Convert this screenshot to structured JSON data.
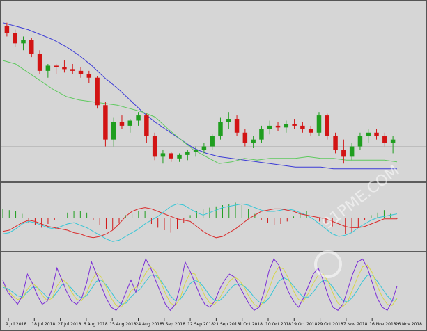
{
  "chart_data": {
    "type": "line",
    "title": "",
    "colors": {
      "background": "#d6d6d6",
      "bull": "#1f9e1f",
      "bear": "#d21414",
      "ma_slow": "#3b3bd6",
      "ma_fast": "#5ec95e",
      "ma_yellow": "#e6e07a",
      "macd_signal": "#d92b2b",
      "macd_line": "#36c6d6",
      "stoch_k": "#7a2bd6",
      "stoch_d": "#d6d64a",
      "stoch_3": "#36c6d6",
      "divider": "#333333",
      "hline": "#bdbdbd"
    },
    "x_labels": [
      "9 Jul 2018",
      "18 Jul 2018",
      "27 Jul 2018",
      "6 Aug 2018",
      "15 Aug 2018",
      "24 Aug 2018",
      "3 Sep 2018",
      "12 Sep 2018",
      "21 Sep 2018",
      "1 Oct 2018",
      "10 Oct 2018",
      "19 Oct 2018",
      "29 Oct 2018",
      "7 Nov 2018",
      "16 Nov 2018",
      "26 Nov 2018"
    ],
    "price_panel": {
      "ylim": [
        0,
        100
      ],
      "reference_level": 18,
      "ma_slow": [
        90,
        88,
        86,
        83,
        80,
        76,
        71,
        65,
        58,
        52,
        45,
        38,
        32,
        27,
        22,
        17,
        14,
        12,
        11,
        10,
        9,
        8,
        7,
        6,
        6,
        6,
        5,
        5,
        5,
        5,
        5,
        5
      ],
      "ma_fast": [
        68,
        66,
        61,
        56,
        51,
        47,
        45,
        44,
        43,
        42,
        40,
        38,
        35,
        28,
        22,
        16,
        12,
        8,
        9,
        11,
        10,
        11,
        11,
        11,
        12,
        11,
        11,
        10,
        10,
        10,
        10,
        9
      ],
      "ma_yellow": [
        null,
        null,
        null,
        null,
        null,
        null,
        null,
        null,
        null,
        null,
        null,
        null,
        null,
        null,
        null,
        null,
        null,
        null,
        null,
        null,
        null,
        null,
        null,
        null,
        null,
        null,
        null,
        null,
        null,
        null,
        null,
        null
      ],
      "candles": [
        [
          88,
          90,
          82,
          84
        ],
        [
          84,
          86,
          76,
          78
        ],
        [
          78,
          82,
          74,
          80
        ],
        [
          80,
          81,
          70,
          72
        ],
        [
          72,
          74,
          60,
          62
        ],
        [
          62,
          66,
          58,
          65
        ],
        [
          65,
          66,
          60,
          64
        ],
        [
          64,
          68,
          61,
          63
        ],
        [
          63,
          66,
          60,
          62
        ],
        [
          62,
          64,
          58,
          60
        ],
        [
          60,
          62,
          55,
          58
        ],
        [
          58,
          59,
          40,
          42
        ],
        [
          42,
          44,
          18,
          22
        ],
        [
          22,
          35,
          18,
          32
        ],
        [
          32,
          36,
          28,
          30
        ],
        [
          30,
          34,
          26,
          33
        ],
        [
          33,
          38,
          30,
          36
        ],
        [
          36,
          37,
          20,
          24
        ],
        [
          24,
          26,
          10,
          12
        ],
        [
          12,
          16,
          8,
          14
        ],
        [
          14,
          15,
          9,
          11
        ],
        [
          11,
          14,
          9,
          13
        ],
        [
          13,
          16,
          10,
          15
        ],
        [
          15,
          18,
          12,
          16
        ],
        [
          16,
          20,
          14,
          18
        ],
        [
          18,
          25,
          16,
          24
        ],
        [
          24,
          35,
          22,
          32
        ],
        [
          32,
          38,
          28,
          34
        ],
        [
          34,
          36,
          24,
          26
        ],
        [
          26,
          28,
          18,
          20
        ],
        [
          20,
          24,
          17,
          22
        ],
        [
          22,
          30,
          20,
          28
        ],
        [
          28,
          33,
          25,
          30
        ],
        [
          30,
          32,
          27,
          29
        ],
        [
          29,
          33,
          26,
          31
        ],
        [
          31,
          34,
          28,
          30
        ],
        [
          30,
          32,
          26,
          28
        ],
        [
          28,
          30,
          24,
          26
        ],
        [
          26,
          38,
          24,
          36
        ],
        [
          36,
          37,
          22,
          24
        ],
        [
          24,
          26,
          14,
          16
        ],
        [
          16,
          22,
          8,
          12
        ],
        [
          12,
          20,
          10,
          18
        ],
        [
          18,
          26,
          16,
          24
        ],
        [
          24,
          28,
          20,
          26
        ],
        [
          26,
          28,
          22,
          24
        ],
        [
          24,
          26,
          18,
          20
        ],
        [
          20,
          24,
          14,
          22
        ]
      ]
    },
    "macd_panel": {
      "ylim": [
        -50,
        50
      ],
      "histogram": [
        14,
        12,
        10,
        6,
        -8,
        -12,
        -16,
        -10,
        -4,
        6,
        8,
        10,
        10,
        8,
        -4,
        -12,
        -18,
        -20,
        -8,
        4,
        6,
        10,
        10,
        -10,
        -16,
        -20,
        -24,
        -18,
        -8,
        4,
        10,
        14,
        16,
        18,
        20,
        22,
        24,
        20,
        14,
        6,
        -4,
        -8,
        -12,
        -10,
        -6,
        2,
        8,
        10,
        -2,
        -6,
        -10,
        -14,
        -22,
        -26,
        -24,
        -16,
        -4,
        4,
        8,
        12,
        6,
        -2
      ],
      "signal_line": [
        -22,
        -20,
        -14,
        -8,
        -4,
        -6,
        -10,
        -14,
        -16,
        -18,
        -20,
        -24,
        -26,
        -30,
        -32,
        -30,
        -26,
        -20,
        -10,
        2,
        10,
        14,
        16,
        14,
        10,
        6,
        2,
        -2,
        -4,
        -6,
        -14,
        -22,
        -28,
        -32,
        -30,
        -24,
        -18,
        -10,
        -2,
        4,
        10,
        12,
        14,
        14,
        12,
        10,
        6,
        4,
        2,
        0,
        -2,
        -6,
        -10,
        -14,
        -16,
        -16,
        -14,
        -10,
        -6,
        -2,
        -2,
        -2
      ],
      "macd_line": [
        -26,
        -24,
        -18,
        -10,
        -6,
        -8,
        -12,
        -16,
        -18,
        -14,
        -10,
        -8,
        -12,
        -16,
        -22,
        -28,
        -34,
        -38,
        -36,
        -30,
        -24,
        -18,
        -10,
        -4,
        2,
        10,
        18,
        22,
        20,
        14,
        8,
        4,
        8,
        12,
        16,
        18,
        20,
        22,
        20,
        16,
        12,
        10,
        10,
        12,
        14,
        12,
        8,
        4,
        -2,
        -10,
        -18,
        -26,
        -30,
        -28,
        -24,
        -16,
        -10,
        -4,
        0,
        2,
        4,
        6
      ]
    },
    "stoch_panel": {
      "ylim": [
        0,
        100
      ],
      "k": [
        60,
        40,
        30,
        20,
        35,
        70,
        55,
        35,
        20,
        25,
        45,
        80,
        60,
        40,
        25,
        20,
        30,
        55,
        90,
        70,
        50,
        30,
        15,
        10,
        20,
        40,
        60,
        40,
        70,
        95,
        80,
        60,
        40,
        20,
        10,
        20,
        50,
        90,
        75,
        55,
        35,
        20,
        15,
        25,
        45,
        60,
        70,
        65,
        50,
        35,
        20,
        10,
        15,
        40,
        75,
        95,
        85,
        60,
        40,
        25,
        15,
        30,
        50,
        70,
        80,
        60,
        35,
        15,
        10,
        20,
        45,
        70,
        90,
        95,
        80,
        55,
        30,
        15,
        10,
        25,
        50
      ],
      "d": [
        52,
        44,
        34,
        28,
        30,
        45,
        55,
        48,
        35,
        26,
        30,
        50,
        62,
        55,
        40,
        28,
        26,
        38,
        58,
        72,
        65,
        48,
        30,
        18,
        15,
        25,
        42,
        48,
        55,
        72,
        82,
        75,
        58,
        38,
        22,
        18,
        30,
        55,
        72,
        70,
        52,
        34,
        22,
        20,
        30,
        45,
        58,
        65,
        60,
        48,
        32,
        20,
        15,
        25,
        45,
        68,
        82,
        78,
        62,
        42,
        28,
        25,
        38,
        55,
        68,
        70,
        58,
        38,
        22,
        16,
        25,
        45,
        65,
        82,
        85,
        72,
        50,
        32,
        20,
        18,
        30
      ],
      "line3": [
        48,
        46,
        40,
        34,
        32,
        40,
        48,
        48,
        40,
        32,
        30,
        40,
        52,
        54,
        46,
        36,
        30,
        34,
        46,
        58,
        60,
        52,
        40,
        28,
        20,
        22,
        32,
        40,
        46,
        58,
        68,
        68,
        60,
        48,
        34,
        26,
        28,
        40,
        54,
        60,
        56,
        46,
        34,
        26,
        26,
        34,
        44,
        52,
        54,
        50,
        42,
        32,
        24,
        22,
        30,
        44,
        58,
        64,
        60,
        50,
        40,
        32,
        32,
        40,
        52,
        60,
        58,
        48,
        36,
        26,
        24,
        32,
        44,
        58,
        68,
        68,
        58,
        46,
        34,
        26,
        28
      ]
    },
    "watermark": "91PME.COM"
  }
}
